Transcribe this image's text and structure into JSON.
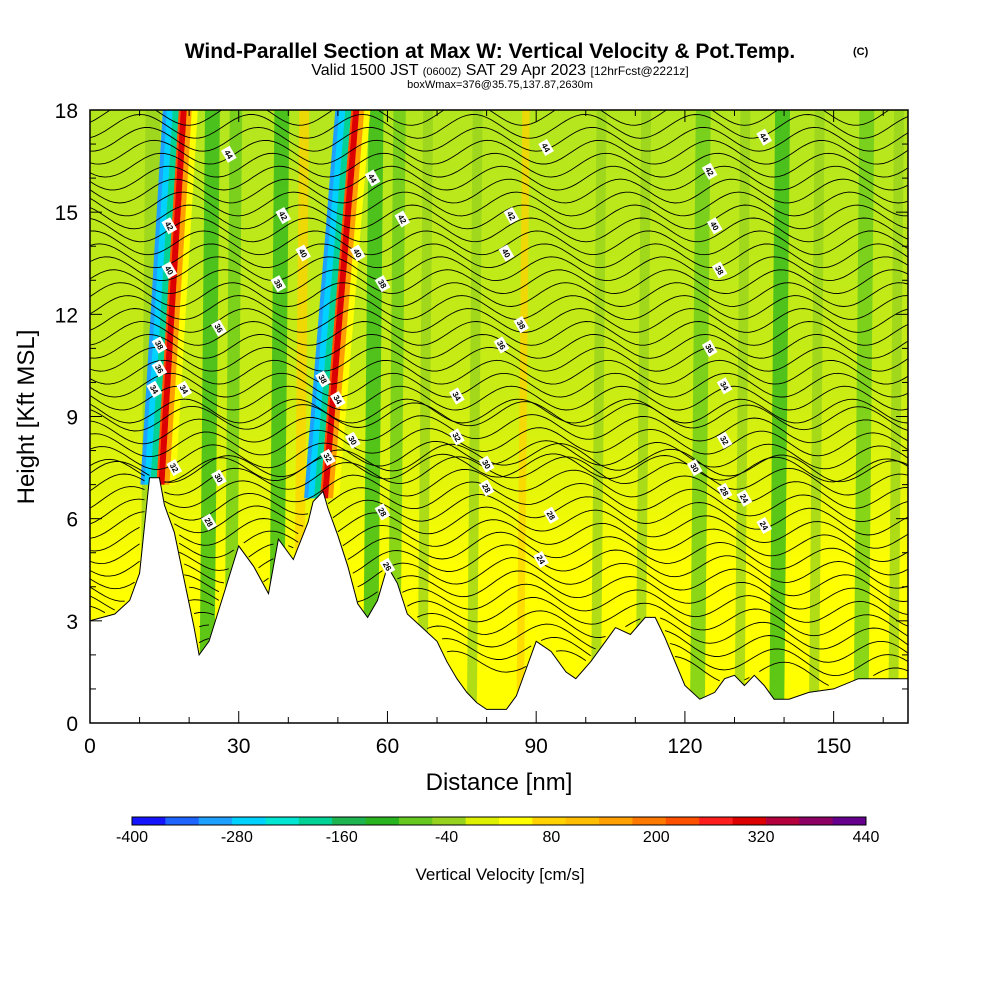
{
  "header": {
    "title": "Wind-Parallel Section at Max W: Vertical Velocity & Pot.Temp.",
    "copyright": "(C)",
    "valid_prefix": "Valid 1500 JST",
    "valid_utc": "(0600Z)",
    "valid_date": "SAT 29 Apr 2023",
    "forecast": "[12hrFcst@2221z]",
    "box_info": "boxWmax=376@35.75,137.87,2630m"
  },
  "colorbar": {
    "label": "Vertical Velocity [cm/s]",
    "tick_labels": [
      "-400",
      "-280",
      "-160",
      "-40",
      "80",
      "200",
      "320",
      "440"
    ],
    "colors": [
      "#1414ff",
      "#1e64ff",
      "#1ea0ff",
      "#00d2ff",
      "#00e6d2",
      "#00d296",
      "#1eb450",
      "#28b41e",
      "#64c81e",
      "#96d21e",
      "#dcf000",
      "#ffff00",
      "#ffd200",
      "#ffbe00",
      "#ffa000",
      "#ff7800",
      "#ff5000",
      "#ff1e1e",
      "#dc0000",
      "#b4003c",
      "#8c0064",
      "#64008c"
    ]
  },
  "chart_data": {
    "type": "heatmap",
    "title": "Wind-Parallel Section at Max W: Vertical Velocity & Pot.Temp.",
    "xlabel": "Distance [nm]",
    "ylabel": "Height [Kft MSL]",
    "xlim": [
      0,
      165
    ],
    "ylim": [
      0,
      18
    ],
    "xticks": [
      0,
      30,
      60,
      90,
      120,
      150
    ],
    "yticks": [
      0,
      3,
      6,
      9,
      12,
      15,
      18
    ],
    "colorbar_range": [
      -400,
      440
    ],
    "field": "Vertical Velocity [cm/s]",
    "contour_field": "Potential Temperature",
    "contour_labels": [
      {
        "text": "44",
        "x": 28,
        "y": 16.7
      },
      {
        "text": "42",
        "x": 39,
        "y": 14.9
      },
      {
        "text": "40",
        "x": 43,
        "y": 13.8
      },
      {
        "text": "38",
        "x": 38,
        "y": 12.9
      },
      {
        "text": "36",
        "x": 26,
        "y": 11.6
      },
      {
        "text": "44",
        "x": 57,
        "y": 16.0
      },
      {
        "text": "42",
        "x": 63,
        "y": 14.8
      },
      {
        "text": "40",
        "x": 54,
        "y": 13.8
      },
      {
        "text": "38",
        "x": 59,
        "y": 12.9
      },
      {
        "text": "44",
        "x": 92,
        "y": 16.9
      },
      {
        "text": "42",
        "x": 85,
        "y": 14.9
      },
      {
        "text": "40",
        "x": 84,
        "y": 13.8
      },
      {
        "text": "38",
        "x": 87,
        "y": 11.7
      },
      {
        "text": "36",
        "x": 83,
        "y": 11.1
      },
      {
        "text": "34",
        "x": 74,
        "y": 9.6
      },
      {
        "text": "32",
        "x": 74,
        "y": 8.4
      },
      {
        "text": "30",
        "x": 80,
        "y": 7.6
      },
      {
        "text": "28",
        "x": 80,
        "y": 6.9
      },
      {
        "text": "28",
        "x": 93,
        "y": 6.1
      },
      {
        "text": "24",
        "x": 91,
        "y": 4.8
      },
      {
        "text": "44",
        "x": 136,
        "y": 17.2
      },
      {
        "text": "42",
        "x": 125,
        "y": 16.2
      },
      {
        "text": "40",
        "x": 126,
        "y": 14.6
      },
      {
        "text": "38",
        "x": 127,
        "y": 13.3
      },
      {
        "text": "36",
        "x": 125,
        "y": 11.0
      },
      {
        "text": "34",
        "x": 128,
        "y": 9.9
      },
      {
        "text": "32",
        "x": 128,
        "y": 8.3
      },
      {
        "text": "30",
        "x": 122,
        "y": 7.5
      },
      {
        "text": "28",
        "x": 128,
        "y": 6.8
      },
      {
        "text": "24",
        "x": 132,
        "y": 6.6
      },
      {
        "text": "24",
        "x": 136,
        "y": 5.8
      },
      {
        "text": "42",
        "x": 16,
        "y": 14.6
      },
      {
        "text": "40",
        "x": 16,
        "y": 13.3
      },
      {
        "text": "38",
        "x": 14,
        "y": 11.1
      },
      {
        "text": "36",
        "x": 14,
        "y": 10.4
      },
      {
        "text": "34",
        "x": 13,
        "y": 9.8
      },
      {
        "text": "34",
        "x": 19,
        "y": 9.8
      },
      {
        "text": "32",
        "x": 17,
        "y": 7.5
      },
      {
        "text": "30",
        "x": 26,
        "y": 7.2
      },
      {
        "text": "28",
        "x": 24,
        "y": 5.9
      },
      {
        "text": "38",
        "x": 47,
        "y": 10.1
      },
      {
        "text": "34",
        "x": 50,
        "y": 9.5
      },
      {
        "text": "32",
        "x": 48,
        "y": 7.8
      },
      {
        "text": "30",
        "x": 53,
        "y": 8.3
      },
      {
        "text": "28",
        "x": 59,
        "y": 6.2
      },
      {
        "text": "26",
        "x": 60,
        "y": 4.6
      }
    ]
  }
}
